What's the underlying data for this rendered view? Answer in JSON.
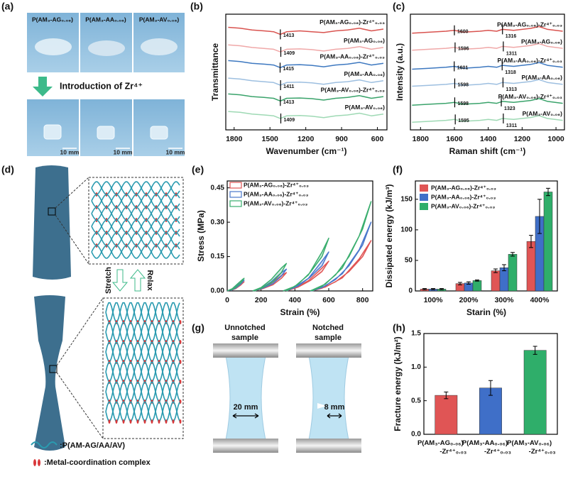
{
  "panel_labels": [
    "(a)",
    "(b)",
    "(c)",
    "(d)",
    "(e)",
    "(f)",
    "(g)",
    "(h)"
  ],
  "photos": {
    "labels": [
      "P(AM₃-AG₀.₀₆)",
      "P(AM₃-AA₀.₀₆)",
      "P(AM₃-AV₀.₀₆)"
    ],
    "arrow_text": "Introduction of Zr⁴⁺",
    "scale_bar": "10 mm"
  },
  "diagram_d": {
    "stretch": "Stretch",
    "relax": "Relax",
    "legend": [
      ":P(AM-AG/AA/AV)",
      ":Metal-coordination complex"
    ]
  },
  "diagram_g": {
    "samples": [
      {
        "lines": [
          "Unnotched",
          "sample"
        ],
        "width": "20 mm"
      },
      {
        "lines": [
          "Notched",
          "sample"
        ],
        "width": "8 mm"
      }
    ]
  },
  "chart_data": [
    {
      "type": "line",
      "y_label": "Transmittance",
      "x_label": "Wavenumber (cm⁻¹)",
      "x": [
        1850,
        1750,
        1650,
        1550,
        1470,
        1413,
        1360,
        1250,
        1150,
        1050,
        950,
        850,
        750,
        650,
        550
      ],
      "xlim": [
        1870,
        520
      ],
      "xticks": [
        1800,
        1500,
        1200,
        900,
        600
      ],
      "ylim": [
        0,
        6.6
      ],
      "series": [
        {
          "name": "P(AM₃-AG₀.₀₆)-Zr⁴⁺₀.₀₃",
          "color": "#d9534f",
          "peaks": [
            1413
          ],
          "values": [
            5.85,
            5.8,
            5.7,
            5.65,
            5.6,
            5.45,
            5.6,
            5.65,
            5.6,
            5.55,
            5.65,
            5.7,
            5.8,
            5.65,
            5.75
          ]
        },
        {
          "name": "P(AM₃-AG₀.₀₆)",
          "color": "#f0a8a8",
          "peaks": [
            1409
          ],
          "values": [
            4.85,
            4.8,
            4.7,
            4.65,
            4.6,
            4.45,
            4.6,
            4.62,
            4.58,
            4.5,
            4.6,
            4.65,
            4.75,
            4.6,
            4.7
          ]
        },
        {
          "name": "P(AM₃-AA₀.₀₆)-Zr⁴⁺₀.₀₃",
          "color": "#3d78c0",
          "peaks": [
            1415
          ],
          "values": [
            3.95,
            3.9,
            3.8,
            3.75,
            3.7,
            3.55,
            3.7,
            3.72,
            3.68,
            3.6,
            3.7,
            3.75,
            3.85,
            3.7,
            3.8
          ]
        },
        {
          "name": "P(AM₃-AA₀.₀₆)",
          "color": "#9dbfe0",
          "peaks": [
            1411
          ],
          "values": [
            2.95,
            2.9,
            2.8,
            2.75,
            2.7,
            2.55,
            2.7,
            2.72,
            2.68,
            2.6,
            2.7,
            2.75,
            2.85,
            2.7,
            2.8
          ]
        },
        {
          "name": "P(AM₃-AV₀.₀₆)-Zr⁴⁺₀.₀₃",
          "color": "#3aa36b",
          "peaks": [
            1413
          ],
          "values": [
            2.05,
            2.0,
            1.9,
            1.85,
            1.8,
            1.65,
            1.8,
            1.82,
            1.78,
            1.7,
            1.8,
            1.85,
            1.95,
            1.8,
            1.9
          ]
        },
        {
          "name": "P(AM₃-AV₀.₀₆)",
          "color": "#9ed9b4",
          "peaks": [
            1409
          ],
          "values": [
            1.05,
            1.0,
            0.9,
            0.85,
            0.8,
            0.65,
            0.8,
            0.82,
            0.78,
            0.7,
            0.8,
            0.85,
            0.95,
            0.8,
            0.9
          ]
        }
      ]
    },
    {
      "type": "line",
      "y_label": "Intensity (a.u.)",
      "x_label": "Raman shift (cm⁻¹)",
      "x": [
        1850,
        1750,
        1650,
        1600,
        1550,
        1450,
        1400,
        1350,
        1316,
        1250,
        1150,
        1100,
        1050,
        960
      ],
      "xlim": [
        1860,
        950
      ],
      "xticks": [
        1800,
        1600,
        1400,
        1200,
        1000
      ],
      "ylim": [
        0.5,
        6.6
      ],
      "series": [
        {
          "name": "P(AM₃-AG₀.₀₆)-Zr⁴⁺₀.₀₃",
          "color": "#d9534f",
          "peaks": [
            1600,
            1316
          ],
          "values": [
            5.6,
            5.65,
            5.7,
            5.75,
            5.65,
            5.7,
            5.75,
            5.7,
            5.8,
            5.75,
            5.85,
            5.95,
            5.8,
            5.7
          ]
        },
        {
          "name": "P(AM₃-AG₀.₀₆)",
          "color": "#f0a8a8",
          "peaks": [
            1596,
            1311
          ],
          "values": [
            4.7,
            4.75,
            4.8,
            4.85,
            4.75,
            4.8,
            4.85,
            4.8,
            4.9,
            4.85,
            4.95,
            5.05,
            4.9,
            4.8
          ]
        },
        {
          "name": "P(AM₃-AA₀.₀₆)-Zr⁴⁺₀.₀₃",
          "color": "#3d78c0",
          "peaks": [
            1601,
            1318
          ],
          "values": [
            3.7,
            3.75,
            3.8,
            3.85,
            3.75,
            3.8,
            3.85,
            3.8,
            3.9,
            3.85,
            3.95,
            4.05,
            3.9,
            3.8
          ]
        },
        {
          "name": "P(AM₃-AA₀.₀₆)",
          "color": "#9dbfe0",
          "peaks": [
            1598,
            1313
          ],
          "values": [
            2.8,
            2.85,
            2.9,
            2.95,
            2.85,
            2.9,
            2.95,
            2.9,
            3.0,
            2.95,
            3.05,
            3.15,
            3.0,
            2.9
          ]
        },
        {
          "name": "P(AM₃-AV₀.₀₆)-Zr⁴⁺₀.₀₃",
          "color": "#3aa36b",
          "peaks": [
            1598,
            1323
          ],
          "values": [
            1.8,
            1.85,
            1.9,
            1.95,
            1.85,
            1.9,
            1.95,
            1.9,
            2.0,
            1.95,
            2.05,
            2.15,
            2.0,
            1.9
          ]
        },
        {
          "name": "P(AM₃-AV₀.₀₆)",
          "color": "#9ed9b4",
          "peaks": [
            1595,
            1311
          ],
          "values": [
            0.9,
            0.95,
            1.0,
            1.05,
            0.95,
            1.0,
            1.05,
            1.0,
            1.1,
            1.05,
            1.15,
            1.25,
            1.1,
            1.0
          ]
        }
      ]
    },
    {
      "type": "line",
      "y_label": "Stress (MPa)",
      "x_label": "Strain (%)",
      "legend": "upper left",
      "xlim": [
        0,
        860
      ],
      "xticks": [
        0,
        200,
        400,
        600,
        800
      ],
      "ylim": [
        0,
        0.48
      ],
      "yticks": [
        {
          "value": 0,
          "label": "0.00"
        },
        {
          "value": 0.15,
          "label": "0.15"
        },
        {
          "value": 0.3,
          "label": "0.30"
        },
        {
          "value": 0.45,
          "label": "0.45"
        }
      ],
      "series": [
        {
          "name": "P(AM₃-AG₀.₀₆)-Zr⁴⁺₀.₀₃",
          "color": "#e05555",
          "x": [
            0,
            30,
            60,
            90,
            100,
            80,
            50,
            20,
            null,
            150,
            200,
            260,
            320,
            350,
            320,
            270,
            210,
            160,
            null,
            330,
            400,
            480,
            560,
            600,
            560,
            490,
            420,
            350,
            null,
            490,
            580,
            680,
            780,
            850,
            800,
            720,
            640,
            560,
            500
          ],
          "values": [
            0,
            0.007,
            0.02,
            0.036,
            0.04,
            0.026,
            0.01,
            0.002,
            null,
            0,
            0.01,
            0.033,
            0.067,
            0.08,
            0.055,
            0.027,
            0.01,
            0,
            null,
            0,
            0.013,
            0.045,
            0.1,
            0.13,
            0.085,
            0.045,
            0.017,
            0,
            null,
            0,
            0.017,
            0.057,
            0.14,
            0.22,
            0.15,
            0.085,
            0.04,
            0.012,
            0
          ]
        },
        {
          "name": "P(AM₃-AA₀.₀₆)-Zr⁴⁺₀.₀₃",
          "color": "#4a78cc",
          "x": [
            0,
            30,
            60,
            90,
            100,
            80,
            50,
            20,
            null,
            150,
            200,
            260,
            320,
            350,
            320,
            270,
            210,
            160,
            null,
            330,
            400,
            480,
            560,
            600,
            560,
            490,
            420,
            350,
            null,
            490,
            580,
            680,
            780,
            850,
            800,
            720,
            640,
            560,
            500
          ],
          "values": [
            0,
            0.008,
            0.025,
            0.042,
            0.047,
            0.03,
            0.012,
            0.002,
            null,
            0,
            0.012,
            0.04,
            0.08,
            0.095,
            0.065,
            0.032,
            0.012,
            0,
            null,
            0,
            0.016,
            0.055,
            0.13,
            0.17,
            0.11,
            0.06,
            0.022,
            0,
            null,
            0,
            0.022,
            0.075,
            0.18,
            0.3,
            0.2,
            0.11,
            0.05,
            0.015,
            0
          ]
        },
        {
          "name": "P(AM₃-AV₀.₀₆)-Zr⁴⁺₀.₀₃",
          "color": "#3aae6e",
          "x": [
            0,
            30,
            60,
            90,
            100,
            80,
            50,
            20,
            null,
            150,
            200,
            260,
            320,
            350,
            320,
            270,
            210,
            160,
            null,
            330,
            400,
            480,
            560,
            600,
            560,
            490,
            420,
            350,
            null,
            490,
            580,
            680,
            780,
            850,
            800,
            720,
            640,
            560,
            500
          ],
          "values": [
            0,
            0.01,
            0.03,
            0.05,
            0.055,
            0.035,
            0.015,
            0.003,
            null,
            0,
            0.015,
            0.05,
            0.1,
            0.12,
            0.08,
            0.04,
            0.015,
            0,
            null,
            0,
            0.02,
            0.07,
            0.17,
            0.23,
            0.15,
            0.08,
            0.03,
            0,
            null,
            0,
            0.03,
            0.1,
            0.24,
            0.39,
            0.27,
            0.15,
            0.07,
            0.02,
            0
          ]
        }
      ]
    },
    {
      "type": "bar",
      "y_label": "Dissipated energy (kJ/m³)",
      "x_label": "Starin (%)",
      "legend": "upper left",
      "categories": [
        "100%",
        "200%",
        "300%",
        "400%"
      ],
      "ylim": [
        0,
        180
      ],
      "yticks": [
        0,
        50,
        100,
        150
      ],
      "series": [
        {
          "name": "P(AM₃-AG₀.₀₆)-Zr⁴⁺₀.₀₃",
          "color": "#e05555",
          "values": [
            3,
            12,
            33,
            81
          ],
          "errors": [
            1,
            2,
            3,
            10
          ]
        },
        {
          "name": "P(AM₃-AA₀.₀₆)-Zr⁴⁺₀.₀₃",
          "color": "#3f6fc8",
          "values": [
            3,
            13,
            38,
            122
          ],
          "errors": [
            1,
            2,
            5,
            28
          ]
        },
        {
          "name": "P(AM₃-AV₀.₀₆)-Zr⁴⁺₀.₀₃",
          "color": "#2fae6a",
          "values": [
            3,
            17,
            60,
            162
          ],
          "errors": [
            1,
            1,
            3,
            6
          ]
        }
      ]
    },
    {
      "type": "bar",
      "y_label": "Fracture energy (kJ/m²)",
      "categories": [
        "P(AM₃-AG₀.₀₆)-Zr⁴⁺₀.₀₃",
        "P(AM₃-AA₀.₀₆)-Zr⁴⁺₀.₀₃",
        "P(AM₃-AV₀.₀₆)-Zr⁴⁺₀.₀₃"
      ],
      "values": [
        0.58,
        0.69,
        1.25
      ],
      "errors": [
        0.05,
        0.11,
        0.06
      ],
      "colors": [
        "#e05555",
        "#3f6fc8",
        "#2fae6a"
      ],
      "ylim": [
        0,
        1.5
      ],
      "yticks": [
        {
          "value": 0,
          "label": "0.0"
        },
        {
          "value": 0.5,
          "label": "0.5"
        },
        {
          "value": 1,
          "label": "1.0"
        },
        {
          "value": 1.5,
          "label": "1.5"
        }
      ]
    }
  ]
}
